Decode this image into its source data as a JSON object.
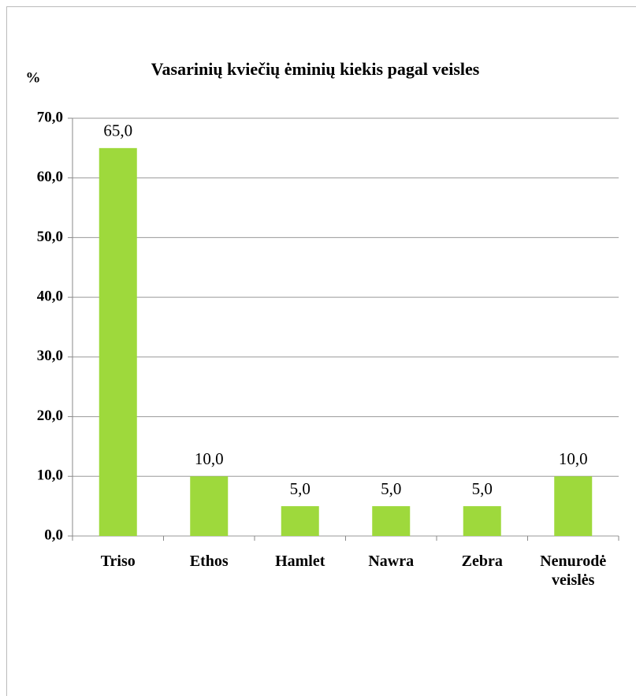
{
  "chart_data": {
    "type": "bar",
    "title": "Vasarinių kviečių ėminių kiekis pagal veisles",
    "ylabel": "%",
    "categories": [
      "Triso",
      "Ethos",
      "Hamlet",
      "Nawra",
      "Zebra",
      "Nenurodė veislės"
    ],
    "values": [
      65.0,
      10.0,
      5.0,
      5.0,
      5.0,
      10.0
    ],
    "value_labels": [
      "65,0",
      "10,0",
      "5,0",
      "5,0",
      "5,0",
      "10,0"
    ],
    "color": "#9ed93c",
    "ylim": [
      0,
      70
    ],
    "yticks": [
      {
        "value": 0,
        "label": "0,0"
      },
      {
        "value": 10,
        "label": "10,0"
      },
      {
        "value": 20,
        "label": "20,0"
      },
      {
        "value": 30,
        "label": "30,0"
      },
      {
        "value": 40,
        "label": "40,0"
      },
      {
        "value": 50,
        "label": "50,0"
      },
      {
        "value": 60,
        "label": "60,0"
      },
      {
        "value": 70,
        "label": "70,0"
      }
    ],
    "grid": true
  }
}
